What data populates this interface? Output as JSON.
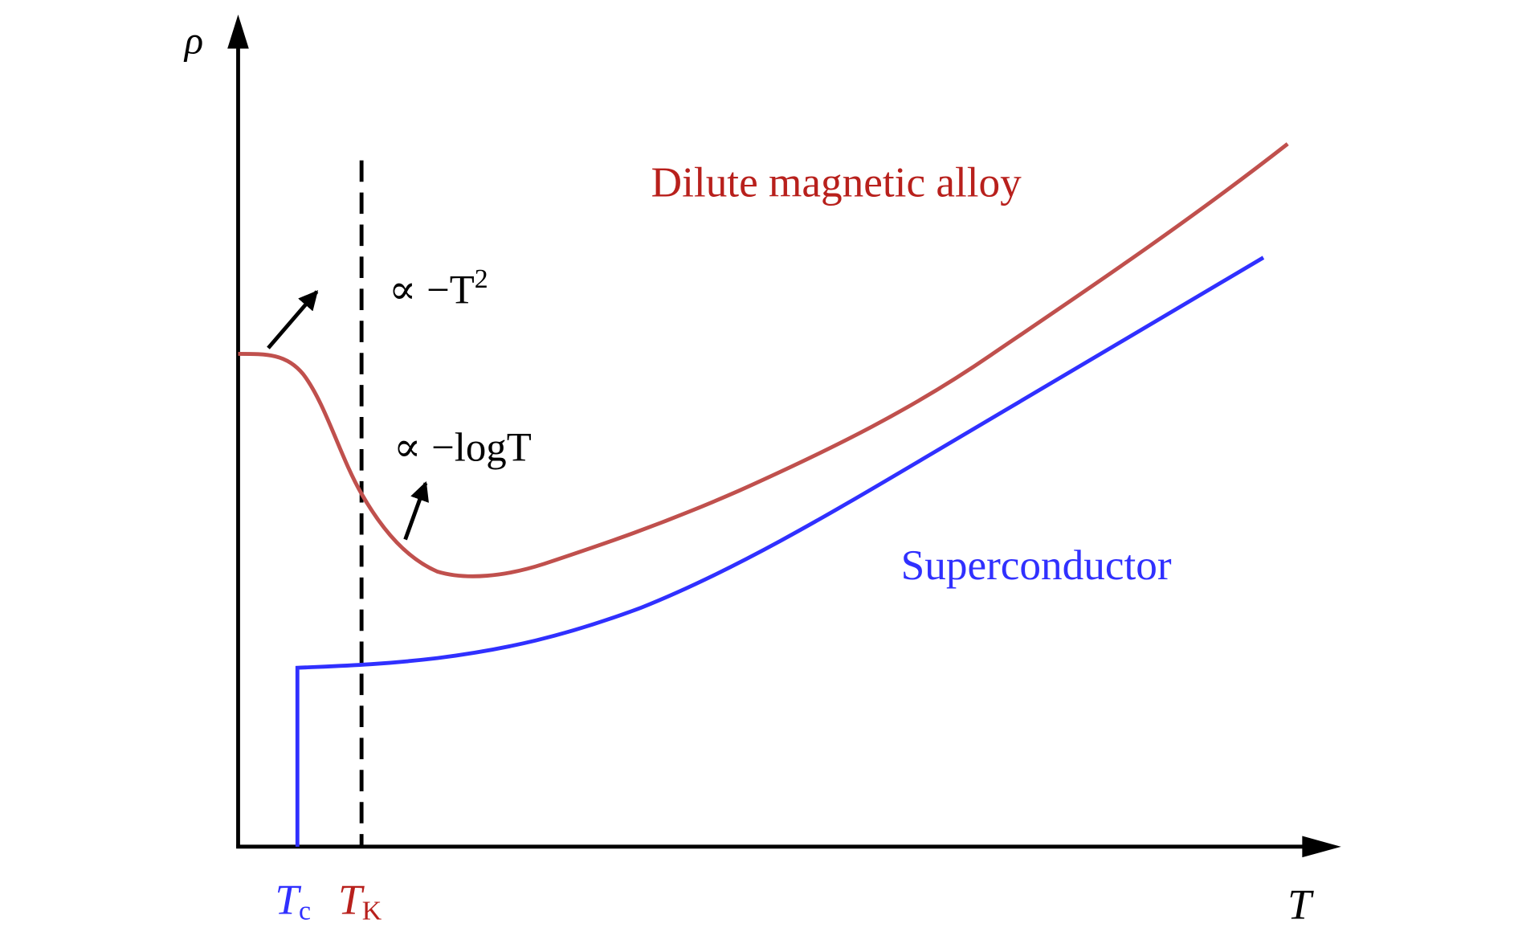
{
  "axes": {
    "y_label": "ρ",
    "x_label": "T"
  },
  "curves": {
    "alloy": "Dilute magnetic alloy",
    "superconductor": "Superconductor"
  },
  "annotations": {
    "power": {
      "text": "∝ −T",
      "sup": "2"
    },
    "log": {
      "text": "∝ −logT"
    }
  },
  "markers": {
    "tc": {
      "main": "T",
      "sub": "c"
    },
    "tk": {
      "main": "T",
      "sub": "K"
    }
  }
}
